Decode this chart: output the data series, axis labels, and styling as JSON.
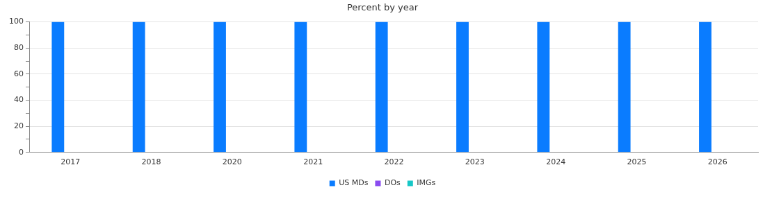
{
  "chart_data": {
    "type": "bar",
    "title": "Percent by year",
    "categories": [
      "2017",
      "2018",
      "2020",
      "2021",
      "2022",
      "2023",
      "2024",
      "2025",
      "2026"
    ],
    "series": [
      {
        "name": "US MDs",
        "color": "#0a7cff",
        "values": [
          100,
          100,
          100,
          100,
          100,
          100,
          100,
          100,
          100
        ]
      },
      {
        "name": "DOs",
        "color": "#8a4cf0",
        "values": [
          0,
          0,
          0,
          0,
          0,
          0,
          0,
          0,
          0
        ]
      },
      {
        "name": "IMGs",
        "color": "#17c7c7",
        "values": [
          0,
          0,
          0,
          0,
          0,
          0,
          0,
          0,
          0
        ]
      }
    ],
    "ylim": [
      0,
      100
    ],
    "yticks": [
      0,
      {
        "value": 10,
        "label": null
      },
      20,
      {
        "value": 30,
        "label": null
      },
      40,
      {
        "value": 50,
        "label": null
      },
      60,
      {
        "value": 70,
        "label": null
      },
      80,
      {
        "value": 90,
        "label": null
      },
      100
    ],
    "grid": "y",
    "legend": "bottom"
  }
}
